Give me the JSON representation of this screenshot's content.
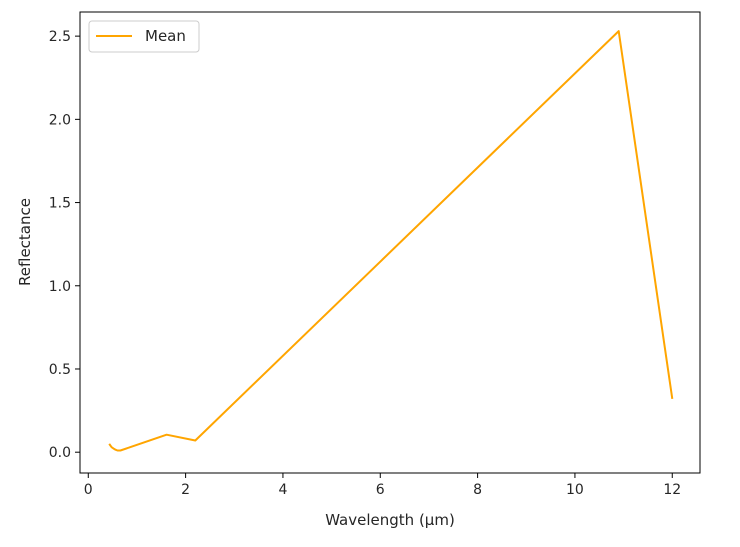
{
  "chart_data": {
    "type": "line",
    "title": "",
    "xlabel": "Wavelength (µm)",
    "ylabel": "Reflectance",
    "xlim": [
      -0.17,
      12.57
    ],
    "ylim": [
      -0.125,
      2.645
    ],
    "xticks": [
      0,
      2,
      4,
      6,
      8,
      10,
      12
    ],
    "xtick_labels": [
      "0",
      "2",
      "4",
      "6",
      "8",
      "10",
      "12"
    ],
    "yticks": [
      0.0,
      0.5,
      1.0,
      1.5,
      2.0,
      2.5
    ],
    "ytick_labels": [
      "0.0",
      "0.5",
      "1.0",
      "1.5",
      "2.0",
      "2.5"
    ],
    "grid": false,
    "legend_position": "top-left",
    "series": [
      {
        "name": "Mean",
        "color": "#ffa500",
        "x": [
          0.43,
          0.48,
          0.53,
          0.56,
          0.6,
          0.66,
          0.86,
          1.61,
          2.2,
          10.9,
          12.0
        ],
        "y": [
          0.05,
          0.03,
          0.02,
          0.015,
          0.01,
          0.01,
          0.03,
          0.105,
          0.07,
          2.53,
          0.32
        ]
      }
    ]
  }
}
